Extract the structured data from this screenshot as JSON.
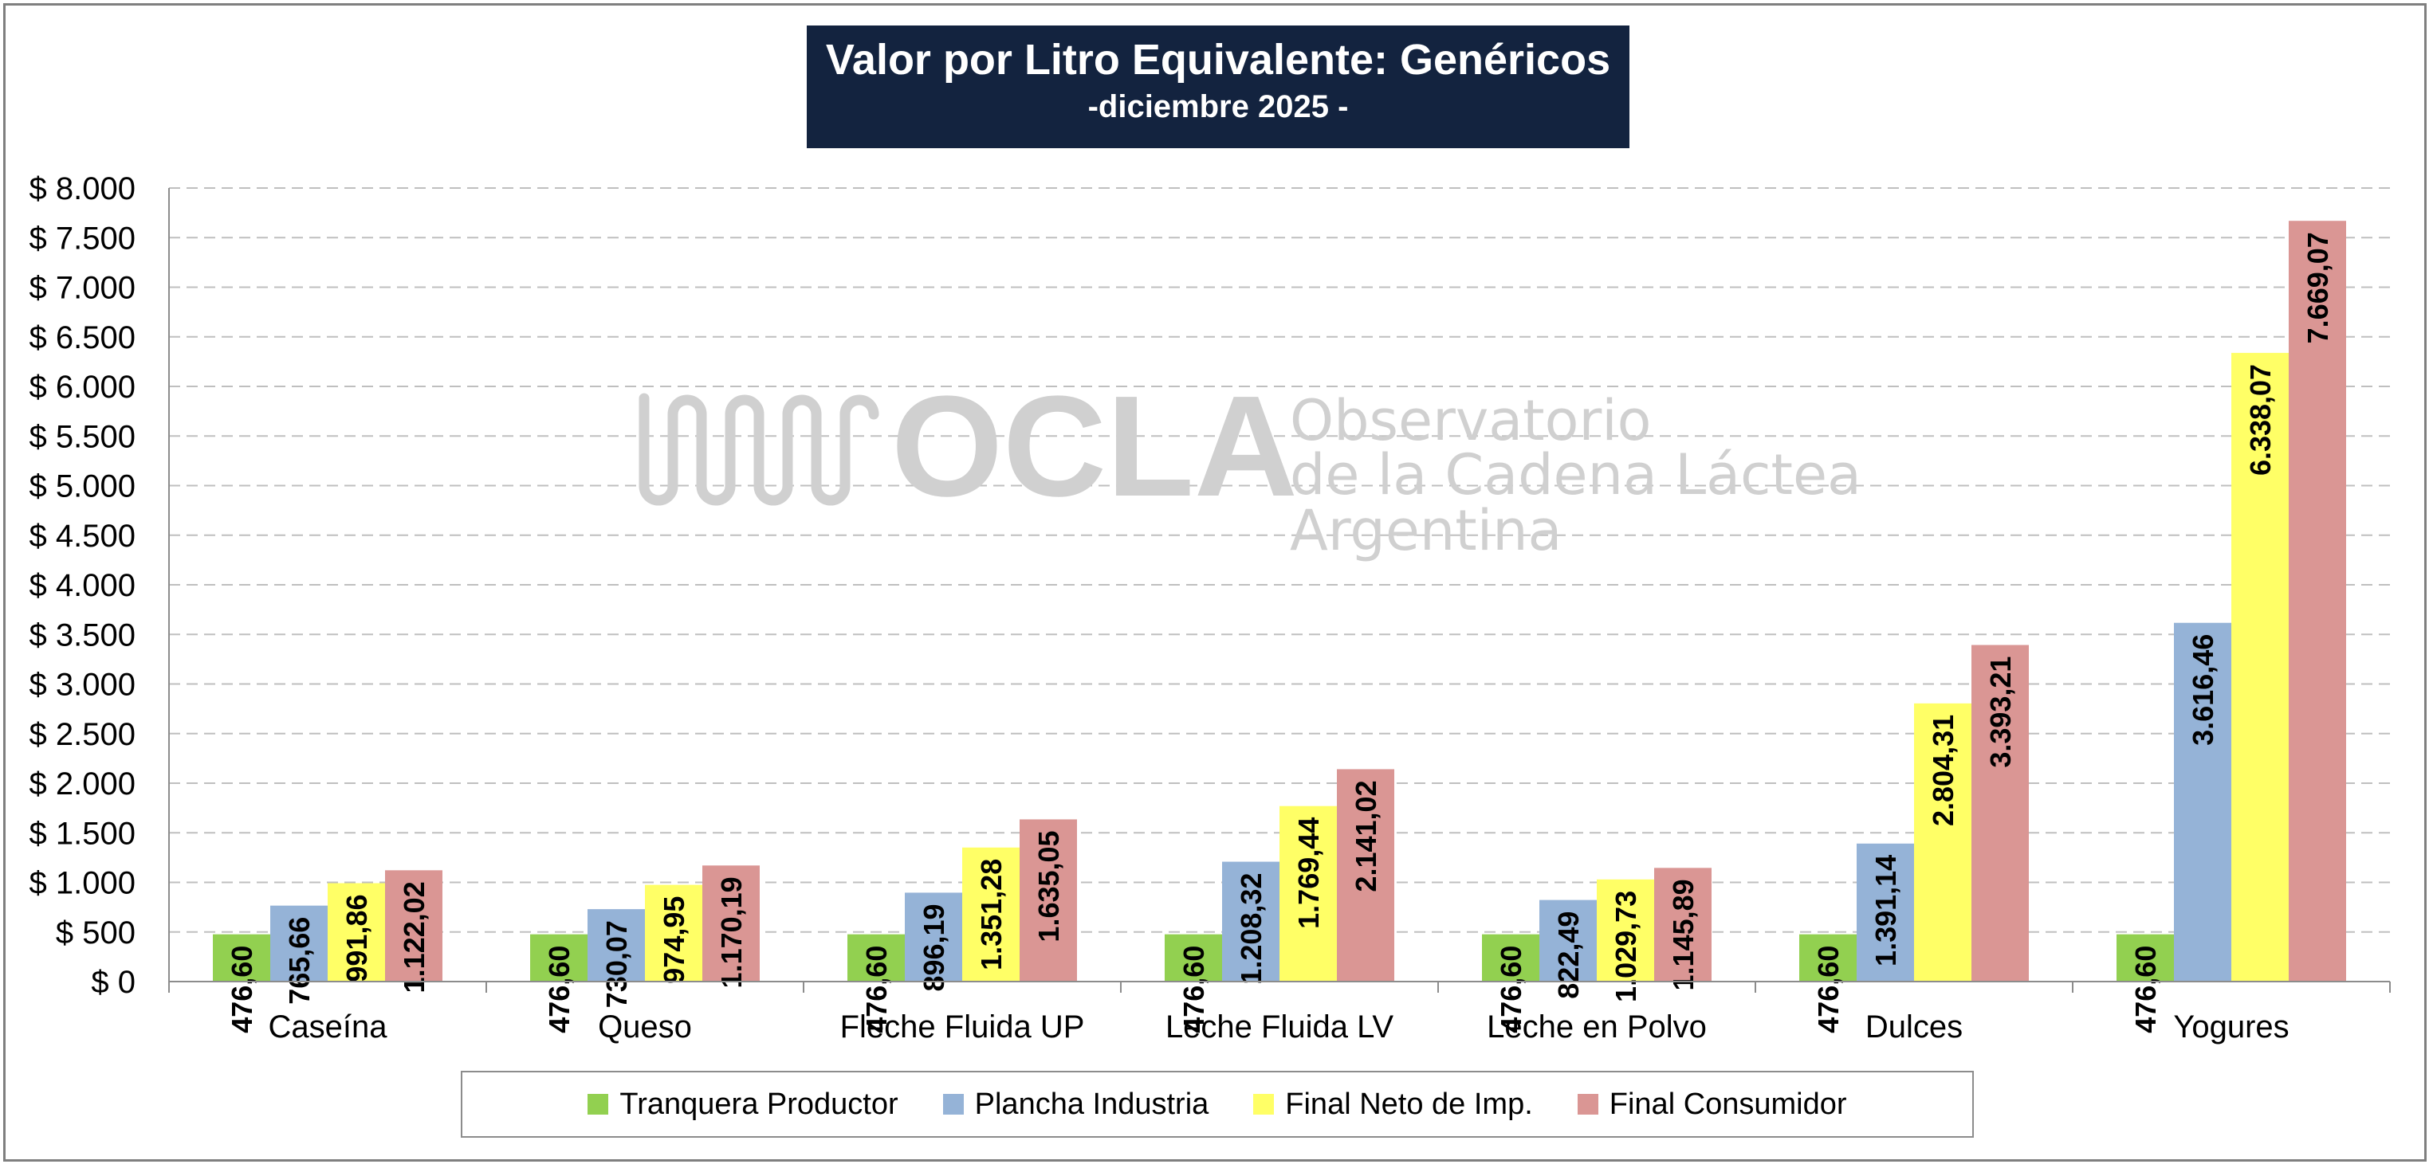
{
  "chart_data": {
    "type": "bar",
    "title": "Valor por Litro Equivalente: Genéricos",
    "subtitle": "-diciembre 2025 -",
    "categories": [
      "Caseína",
      "Queso",
      "Fleche Fluida UP",
      "Leche Fluida LV",
      "Leche en Polvo",
      "Dulces",
      "Yogures"
    ],
    "series": [
      {
        "name": "Tranquera Productor",
        "color": "#92d050",
        "values": [
          476.6,
          476.6,
          476.6,
          476.6,
          476.6,
          476.6,
          476.6
        ],
        "labels": [
          "476,60",
          "476,60",
          "476,60",
          "476,60",
          "476,60",
          "476,60",
          "476,60"
        ]
      },
      {
        "name": "Plancha Industria",
        "color": "#95b3d7",
        "values": [
          765.66,
          730.07,
          896.19,
          1208.32,
          822.49,
          1391.14,
          3616.46
        ],
        "labels": [
          "765,66",
          "730,07",
          "896,19",
          "1.208,32",
          "822,49",
          "1.391,14",
          "3.616,46"
        ]
      },
      {
        "name": "Final Neto de Imp.",
        "color": "#ffff66",
        "values": [
          991.86,
          974.95,
          1351.28,
          1769.44,
          1029.73,
          2804.31,
          6338.07
        ],
        "labels": [
          "991,86",
          "974,95",
          "1.351,28",
          "1.769,44",
          "1.029,73",
          "2.804,31",
          "6.338,07"
        ]
      },
      {
        "name": "Final Consumidor",
        "color": "#da9694",
        "values": [
          1122.02,
          1170.19,
          1635.05,
          2141.02,
          1145.89,
          3393.21,
          7669.07
        ],
        "labels": [
          "1.122,02",
          "1.170,19",
          "1.635,05",
          "2.141,02",
          "1.145,89",
          "3.393,21",
          "7.669,07"
        ]
      }
    ],
    "ylim": [
      0,
      8000
    ],
    "yticks": [
      0,
      500,
      1000,
      1500,
      2000,
      2500,
      3000,
      3500,
      4000,
      4500,
      5000,
      5500,
      6000,
      6500,
      7000,
      7500,
      8000
    ],
    "ytick_labels": [
      "$ 0",
      "$ 500",
      "$ 1.000",
      "$ 1.500",
      "$ 2.000",
      "$ 2.500",
      "$ 3.000",
      "$ 3.500",
      "$ 4.000",
      "$ 4.500",
      "$ 5.000",
      "$ 5.500",
      "$ 6.000",
      "$ 6.500",
      "$ 7.000",
      "$ 7.500",
      "$ 8.000"
    ],
    "grid": true,
    "legend_position": "bottom"
  },
  "watermark": {
    "logo_text": "OCLA",
    "line1": "Observatorio",
    "line2": "de la Cadena Láctea",
    "line3": "Argentina"
  },
  "colors": {
    "title_bg": "#13233f",
    "grid": "#bfbfbf",
    "watermark": "#d0d0d0"
  }
}
